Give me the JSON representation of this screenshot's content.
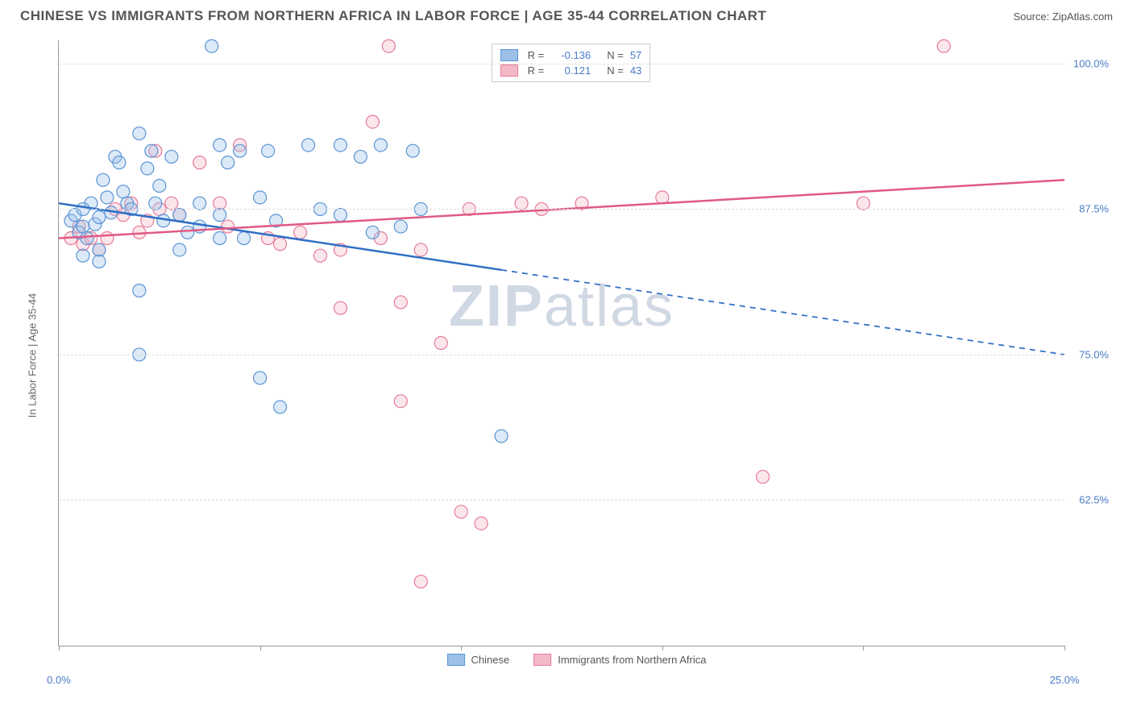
{
  "header": {
    "title": "CHINESE VS IMMIGRANTS FROM NORTHERN AFRICA IN LABOR FORCE | AGE 35-44 CORRELATION CHART",
    "source": "Source: ZipAtlas.com"
  },
  "chart": {
    "type": "scatter",
    "ylabel": "In Labor Force | Age 35-44",
    "watermark_a": "ZIP",
    "watermark_b": "atlas",
    "background_color": "#ffffff",
    "grid_color": "#dddddd",
    "axis_color": "#999999",
    "xlim": [
      0,
      25
    ],
    "ylim": [
      50,
      102
    ],
    "xtick_positions": [
      0,
      5,
      10,
      15,
      20,
      25
    ],
    "xtick_labels": {
      "0": "0.0%",
      "25": "25.0%"
    },
    "ytick_positions": [
      62.5,
      75.0,
      87.5,
      100.0
    ],
    "ytick_labels": [
      "62.5%",
      "75.0%",
      "87.5%",
      "100.0%"
    ],
    "marker_radius": 8,
    "marker_fill_opacity": 0.35,
    "marker_stroke_width": 1.2,
    "series": {
      "chinese": {
        "label": "Chinese",
        "color_fill": "#9cc0e7",
        "color_stroke": "#5a94d6",
        "R": "-0.136",
        "N": "57",
        "trend": {
          "color": "#2f6fc4",
          "width": 2.5,
          "x1": 0,
          "y1": 88.0,
          "x2": 25,
          "y2": 75.0,
          "solid_until_x": 11.0
        },
        "points": [
          [
            0.3,
            86.5
          ],
          [
            0.4,
            87.0
          ],
          [
            0.5,
            85.5
          ],
          [
            0.6,
            86.0
          ],
          [
            0.7,
            85.0
          ],
          [
            0.8,
            88.0
          ],
          [
            0.9,
            86.2
          ],
          [
            1.0,
            86.8
          ],
          [
            1.1,
            90.0
          ],
          [
            1.2,
            88.5
          ],
          [
            1.3,
            87.2
          ],
          [
            1.0,
            84.0
          ],
          [
            1.0,
            83.0
          ],
          [
            0.6,
            87.5
          ],
          [
            0.6,
            83.5
          ],
          [
            1.4,
            92.0
          ],
          [
            1.5,
            91.5
          ],
          [
            1.6,
            89.0
          ],
          [
            1.7,
            88.0
          ],
          [
            1.8,
            87.5
          ],
          [
            2.2,
            91.0
          ],
          [
            2.3,
            92.5
          ],
          [
            2.0,
            94.0
          ],
          [
            2.4,
            88.0
          ],
          [
            2.5,
            89.5
          ],
          [
            2.6,
            86.5
          ],
          [
            2.8,
            92.0
          ],
          [
            3.0,
            87.0
          ],
          [
            3.2,
            85.5
          ],
          [
            3.8,
            101.5
          ],
          [
            3.5,
            86.0
          ],
          [
            3.5,
            88.0
          ],
          [
            4.0,
            93.0
          ],
          [
            4.0,
            87.0
          ],
          [
            4.2,
            91.5
          ],
          [
            4.5,
            92.5
          ],
          [
            4.6,
            85.0
          ],
          [
            5.0,
            88.5
          ],
          [
            5.2,
            92.5
          ],
          [
            5.4,
            86.5
          ],
          [
            5.5,
            70.5
          ],
          [
            5.0,
            73.0
          ],
          [
            2.0,
            75.0
          ],
          [
            2.0,
            80.5
          ],
          [
            6.2,
            93.0
          ],
          [
            6.5,
            87.5
          ],
          [
            7.0,
            87.0
          ],
          [
            7.0,
            93.0
          ],
          [
            7.5,
            92.0
          ],
          [
            7.8,
            85.5
          ],
          [
            8.0,
            93.0
          ],
          [
            8.5,
            86.0
          ],
          [
            8.8,
            92.5
          ],
          [
            9.0,
            87.5
          ],
          [
            11.0,
            68.0
          ],
          [
            3.0,
            84.0
          ],
          [
            4.0,
            85.0
          ]
        ]
      },
      "north_africa": {
        "label": "Immigrants from Northern Africa",
        "color_fill": "#f3b9c7",
        "color_stroke": "#e77a9a",
        "R": "0.121",
        "N": "43",
        "trend": {
          "color": "#e05a85",
          "width": 2.5,
          "x1": 0,
          "y1": 85.0,
          "x2": 25,
          "y2": 90.0,
          "solid_until_x": 25
        },
        "points": [
          [
            0.3,
            85.0
          ],
          [
            0.5,
            86.0
          ],
          [
            0.6,
            84.5
          ],
          [
            0.8,
            85.0
          ],
          [
            1.0,
            84.0
          ],
          [
            1.2,
            85.0
          ],
          [
            1.4,
            87.5
          ],
          [
            1.6,
            87.0
          ],
          [
            1.8,
            88.0
          ],
          [
            2.0,
            85.5
          ],
          [
            2.2,
            86.5
          ],
          [
            2.4,
            92.5
          ],
          [
            2.5,
            87.5
          ],
          [
            2.8,
            88.0
          ],
          [
            3.0,
            87.0
          ],
          [
            3.5,
            91.5
          ],
          [
            4.0,
            88.0
          ],
          [
            4.2,
            86.0
          ],
          [
            4.5,
            93.0
          ],
          [
            5.2,
            85.0
          ],
          [
            5.5,
            84.5
          ],
          [
            6.0,
            85.5
          ],
          [
            6.5,
            83.5
          ],
          [
            7.0,
            84.0
          ],
          [
            7.8,
            95.0
          ],
          [
            8.0,
            85.0
          ],
          [
            8.2,
            101.5
          ],
          [
            8.5,
            71.0
          ],
          [
            8.5,
            79.5
          ],
          [
            9.0,
            84.0
          ],
          [
            9.5,
            76.0
          ],
          [
            9.0,
            55.5
          ],
          [
            10.5,
            60.5
          ],
          [
            10.0,
            61.5
          ],
          [
            10.2,
            87.5
          ],
          [
            11.5,
            88.0
          ],
          [
            12.0,
            87.5
          ],
          [
            13.0,
            88.0
          ],
          [
            15.0,
            88.5
          ],
          [
            17.5,
            64.5
          ],
          [
            20.0,
            88.0
          ],
          [
            22.0,
            101.5
          ],
          [
            7.0,
            79.0
          ]
        ]
      }
    },
    "legend_bottom": [
      {
        "key": "chinese"
      },
      {
        "key": "north_africa"
      }
    ]
  }
}
